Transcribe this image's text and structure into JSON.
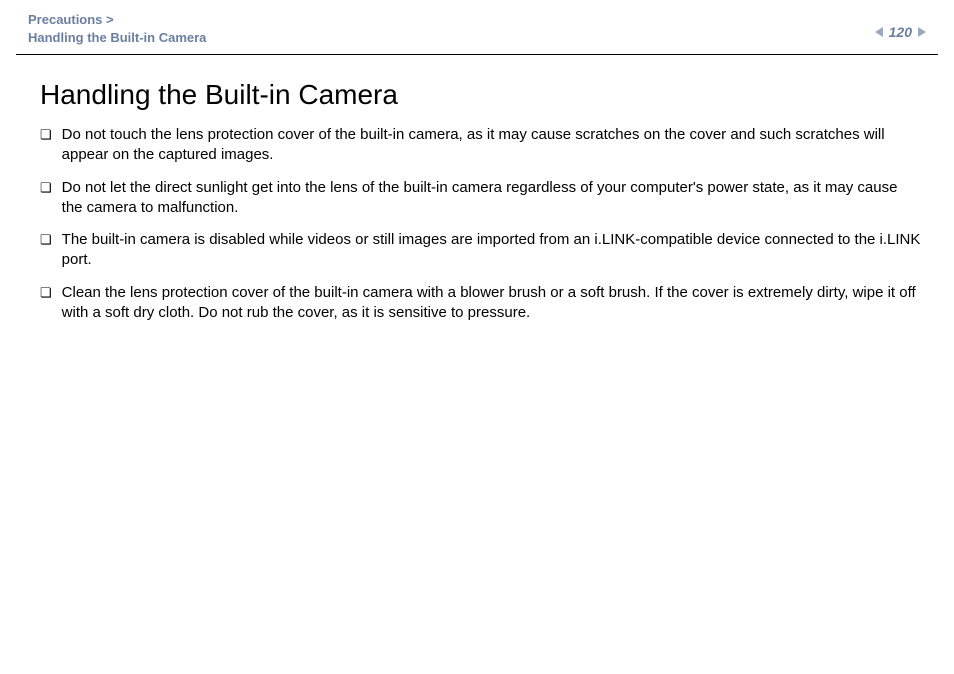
{
  "header": {
    "breadcrumb_top": "Precautions >",
    "breadcrumb_sub": "Handling the Built-in Camera",
    "page_number": "120",
    "breadcrumb_color": "#6a7fa0",
    "nav_arrow_color": "#9aa8c0"
  },
  "main": {
    "title": "Handling the Built-in Camera",
    "bullets": [
      "Do not touch the lens protection cover of the built-in camera, as it may cause scratches on the cover and such scratches will appear on the captured images.",
      "Do not let the direct sunlight get into the lens of the built-in camera regardless of your computer's power state, as it may cause the camera to malfunction.",
      "The built-in camera is disabled while videos or still images are imported from an i.LINK-compatible device connected to the i.LINK port.",
      "Clean the lens protection cover of the built-in camera with a blower brush or a soft brush. If the cover is extremely dirty, wipe it off with a soft dry cloth. Do not rub the cover, as it is sensitive to pressure."
    ],
    "bullet_marker": "❏"
  },
  "style": {
    "text_color": "#000000",
    "background_color": "#ffffff",
    "title_fontsize": 28,
    "body_fontsize": 15,
    "breadcrumb_fontsize": 13
  }
}
